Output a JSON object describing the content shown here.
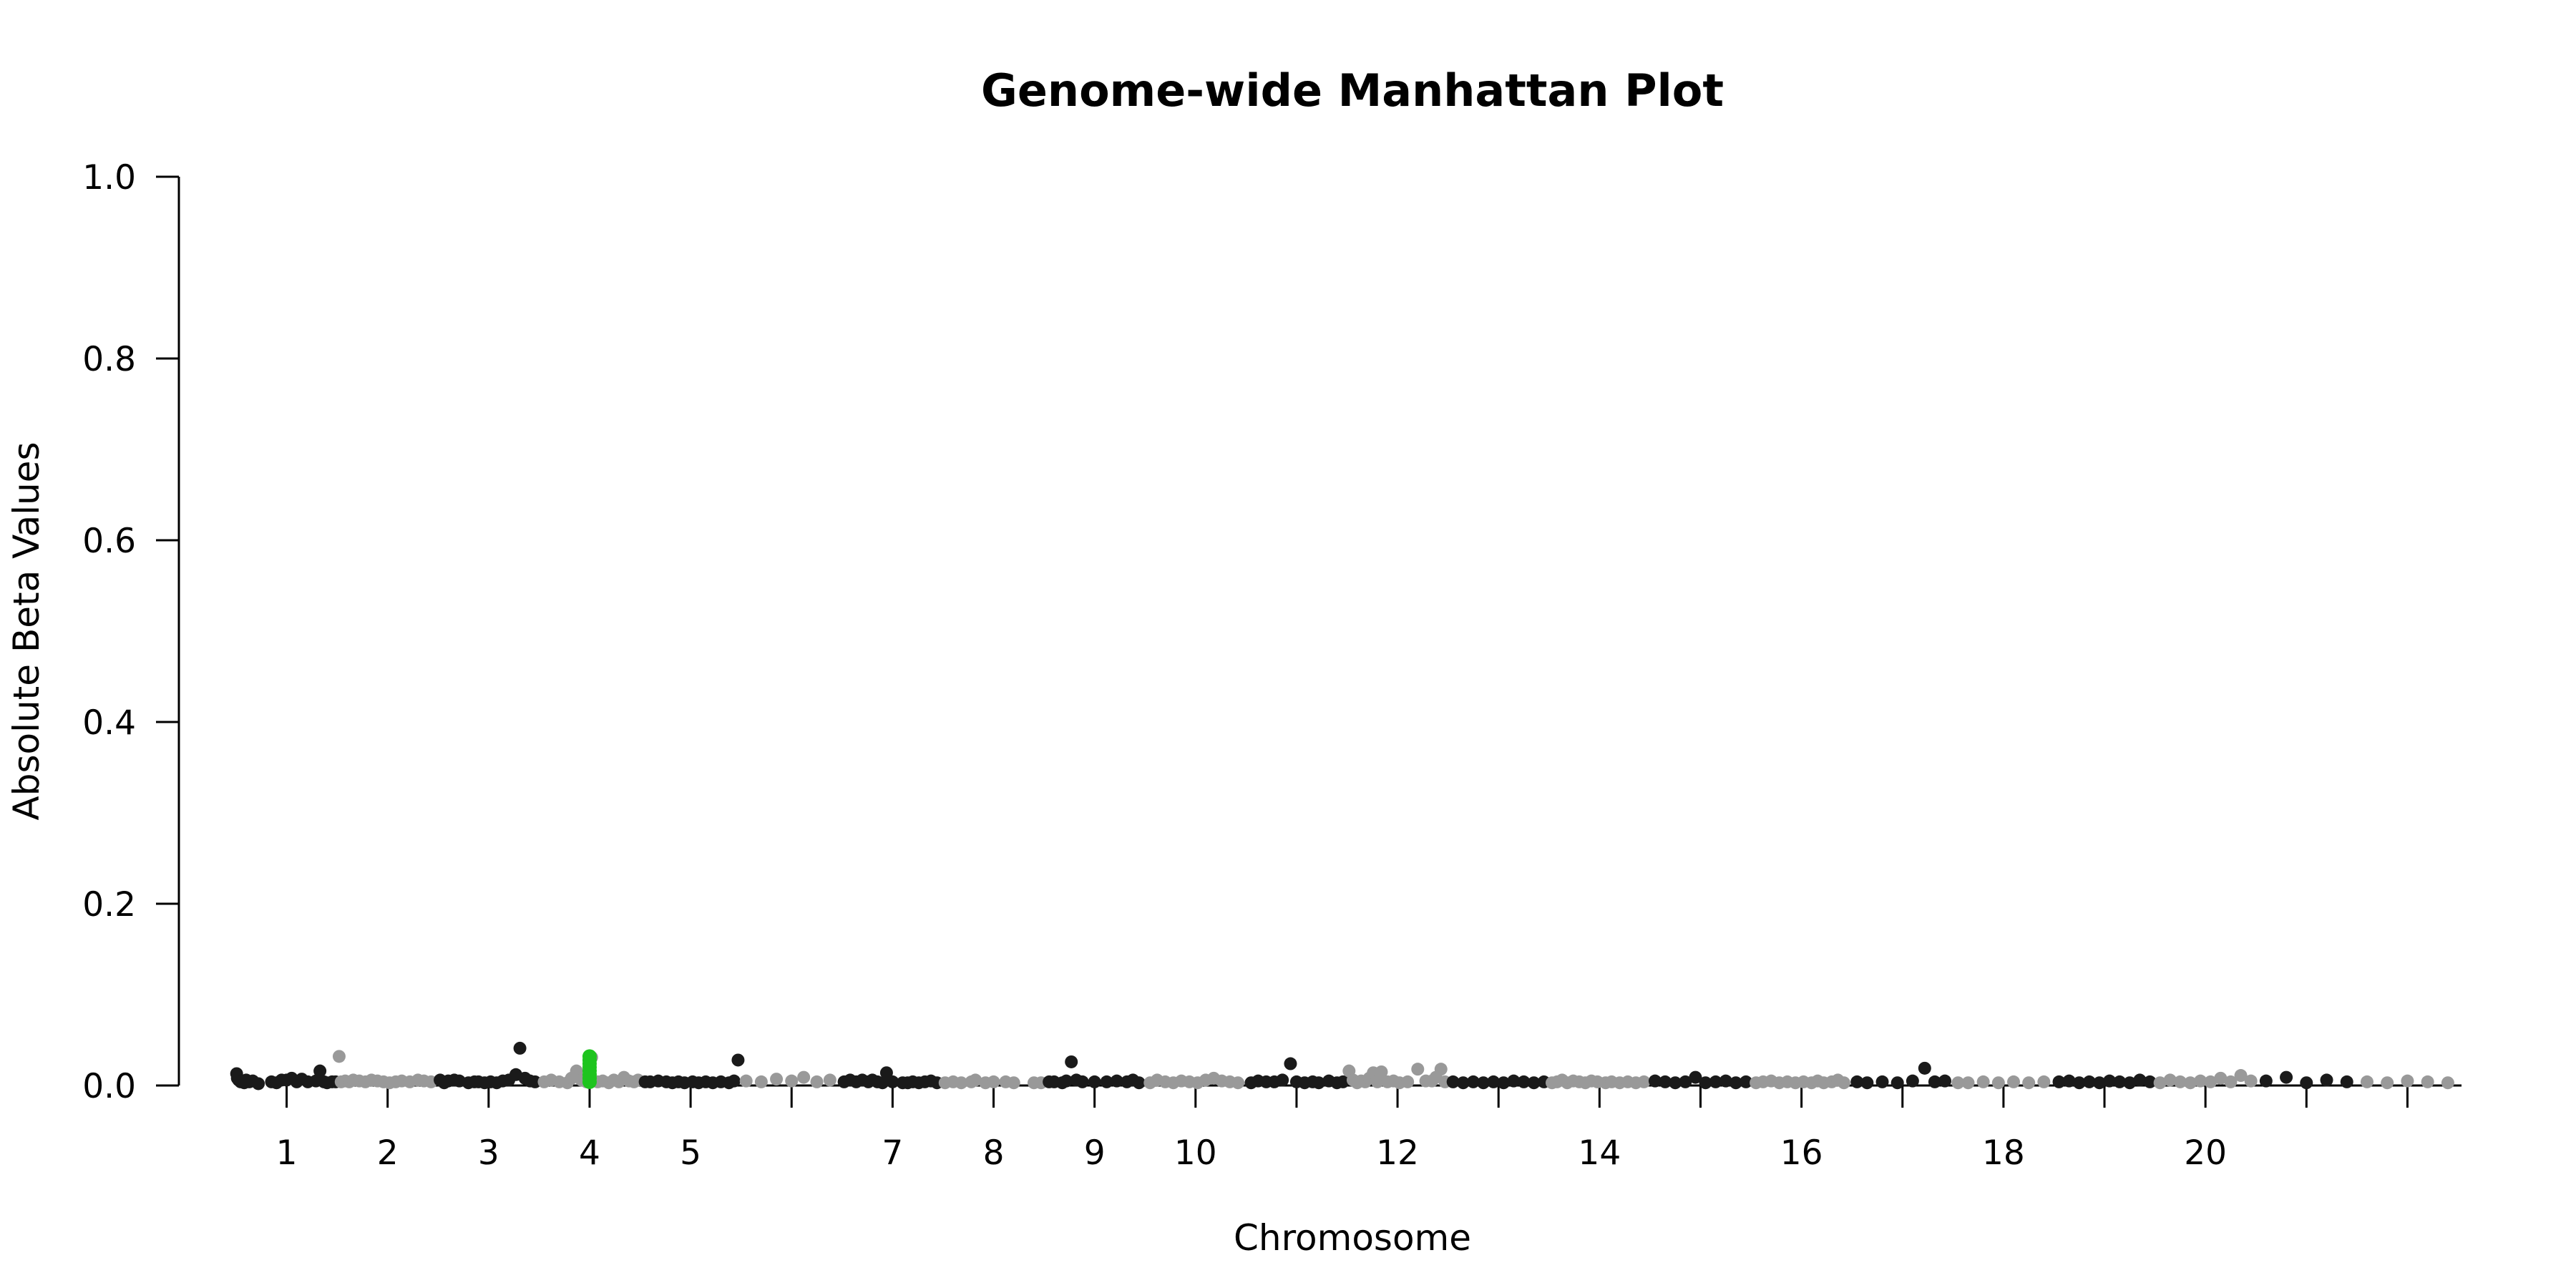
{
  "chart_data": {
    "type": "scatter",
    "title": "Genome-wide Manhattan Plot",
    "xlabel": "Chromosome",
    "ylabel": "Absolute Beta Values",
    "ylim": [
      0,
      1.0
    ],
    "yticks": [
      "0.0",
      "0.2",
      "0.4",
      "0.6",
      "0.8",
      "1.0"
    ],
    "grid": false,
    "colors": {
      "odd": "#1a1a1a",
      "even": "#999999",
      "highlight": "#1ec41e",
      "axis": "#000000"
    },
    "chromosomes": [
      {
        "chr": "1",
        "label": "1",
        "points": [
          [
            0.005,
            0.013
          ],
          [
            0.012,
            0.008
          ],
          [
            0.025,
            0.006
          ],
          [
            0.045,
            0.004
          ],
          [
            0.06,
            0.005
          ],
          [
            0.08,
            0.003
          ],
          [
            0.1,
            0.006
          ],
          [
            0.13,
            0.004
          ],
          [
            0.165,
            0.005
          ],
          [
            0.22,
            0.002
          ],
          [
            0.35,
            0.004
          ],
          [
            0.4,
            0.003
          ],
          [
            0.45,
            0.006
          ],
          [
            0.5,
            0.006
          ],
          [
            0.55,
            0.008
          ],
          [
            0.6,
            0.004
          ],
          [
            0.65,
            0.007
          ],
          [
            0.71,
            0.004
          ],
          [
            0.79,
            0.005
          ],
          [
            0.83,
            0.016
          ],
          [
            0.87,
            0.004
          ],
          [
            0.9,
            0.003
          ],
          [
            0.95,
            0.004
          ],
          [
            0.985,
            0.004
          ]
        ]
      },
      {
        "chr": "2",
        "label": "2",
        "points": [
          [
            0.02,
            0.032
          ],
          [
            0.04,
            0.004
          ],
          [
            0.08,
            0.005
          ],
          [
            0.12,
            0.004
          ],
          [
            0.16,
            0.006
          ],
          [
            0.22,
            0.005
          ],
          [
            0.28,
            0.004
          ],
          [
            0.34,
            0.006
          ],
          [
            0.4,
            0.005
          ],
          [
            0.46,
            0.004
          ],
          [
            0.52,
            0.003
          ],
          [
            0.58,
            0.004
          ],
          [
            0.64,
            0.005
          ],
          [
            0.72,
            0.004
          ],
          [
            0.8,
            0.006
          ],
          [
            0.86,
            0.005
          ],
          [
            0.93,
            0.004
          ]
        ]
      },
      {
        "chr": "3",
        "label": "3",
        "points": [
          [
            0.02,
            0.006
          ],
          [
            0.06,
            0.003
          ],
          [
            0.1,
            0.005
          ],
          [
            0.16,
            0.006
          ],
          [
            0.21,
            0.005
          ],
          [
            0.3,
            0.003
          ],
          [
            0.36,
            0.004
          ],
          [
            0.4,
            0.004
          ],
          [
            0.46,
            0.003
          ],
          [
            0.52,
            0.004
          ],
          [
            0.58,
            0.003
          ],
          [
            0.64,
            0.005
          ],
          [
            0.7,
            0.006
          ],
          [
            0.77,
            0.012
          ],
          [
            0.81,
            0.041
          ],
          [
            0.86,
            0.008
          ],
          [
            0.91,
            0.005
          ],
          [
            0.96,
            0.004
          ]
        ]
      },
      {
        "chr": "4",
        "label": "4",
        "points": [
          [
            0.05,
            0.004
          ],
          [
            0.12,
            0.006
          ],
          [
            0.2,
            0.004
          ],
          [
            0.28,
            0.003
          ],
          [
            0.32,
            0.008
          ],
          [
            0.37,
            0.016
          ],
          [
            0.42,
            0.006
          ],
          [
            0.47,
            0.004
          ],
          [
            0.52,
            0.031
          ],
          [
            0.58,
            0.004
          ],
          [
            0.63,
            0.005
          ],
          [
            0.69,
            0.003
          ],
          [
            0.74,
            0.006
          ],
          [
            0.79,
            0.004
          ],
          [
            0.84,
            0.009
          ],
          [
            0.89,
            0.005
          ],
          [
            0.94,
            0.004
          ],
          [
            0.98,
            0.006
          ]
        ]
      },
      {
        "chr": "5",
        "label": "5",
        "points": [
          [
            0.05,
            0.004
          ],
          [
            0.1,
            0.004
          ],
          [
            0.18,
            0.005
          ],
          [
            0.26,
            0.004
          ],
          [
            0.32,
            0.003
          ],
          [
            0.38,
            0.004
          ],
          [
            0.44,
            0.003
          ],
          [
            0.52,
            0.004
          ],
          [
            0.58,
            0.003
          ],
          [
            0.65,
            0.004
          ],
          [
            0.72,
            0.003
          ],
          [
            0.8,
            0.004
          ],
          [
            0.88,
            0.003
          ],
          [
            0.93,
            0.005
          ],
          [
            0.97,
            0.028
          ]
        ]
      },
      {
        "chr": "6",
        "label": "",
        "points": [
          [
            0.05,
            0.005
          ],
          [
            0.2,
            0.004
          ],
          [
            0.35,
            0.007
          ],
          [
            0.5,
            0.005
          ],
          [
            0.62,
            0.009
          ],
          [
            0.75,
            0.004
          ],
          [
            0.88,
            0.006
          ]
        ]
      },
      {
        "chr": "7",
        "label": "7",
        "points": [
          [
            0.02,
            0.004
          ],
          [
            0.08,
            0.006
          ],
          [
            0.14,
            0.004
          ],
          [
            0.2,
            0.006
          ],
          [
            0.26,
            0.004
          ],
          [
            0.3,
            0.006
          ],
          [
            0.35,
            0.004
          ],
          [
            0.4,
            0.003
          ],
          [
            0.44,
            0.014
          ],
          [
            0.5,
            0.004
          ],
          [
            0.6,
            0.003
          ],
          [
            0.65,
            0.003
          ],
          [
            0.7,
            0.004
          ],
          [
            0.76,
            0.003
          ],
          [
            0.82,
            0.004
          ],
          [
            0.88,
            0.005
          ],
          [
            0.94,
            0.003
          ]
        ]
      },
      {
        "chr": "8",
        "label": "8",
        "points": [
          [
            0.02,
            0.003
          ],
          [
            0.1,
            0.004
          ],
          [
            0.18,
            0.003
          ],
          [
            0.28,
            0.004
          ],
          [
            0.32,
            0.006
          ],
          [
            0.42,
            0.003
          ],
          [
            0.5,
            0.004
          ],
          [
            0.62,
            0.004
          ],
          [
            0.7,
            0.003
          ],
          [
            0.9,
            0.003
          ],
          [
            0.97,
            0.003
          ]
        ]
      },
      {
        "chr": "9",
        "label": "9",
        "points": [
          [
            0.05,
            0.004
          ],
          [
            0.1,
            0.004
          ],
          [
            0.18,
            0.003
          ],
          [
            0.22,
            0.005
          ],
          [
            0.27,
            0.026
          ],
          [
            0.32,
            0.006
          ],
          [
            0.38,
            0.004
          ],
          [
            0.5,
            0.004
          ],
          [
            0.62,
            0.004
          ],
          [
            0.72,
            0.005
          ],
          [
            0.82,
            0.004
          ],
          [
            0.88,
            0.006
          ],
          [
            0.94,
            0.003
          ]
        ]
      },
      {
        "chr": "10",
        "label": "10",
        "points": [
          [
            0.05,
            0.003
          ],
          [
            0.12,
            0.006
          ],
          [
            0.2,
            0.004
          ],
          [
            0.28,
            0.003
          ],
          [
            0.36,
            0.005
          ],
          [
            0.44,
            0.004
          ],
          [
            0.52,
            0.003
          ],
          [
            0.6,
            0.006
          ],
          [
            0.68,
            0.008
          ],
          [
            0.76,
            0.005
          ],
          [
            0.84,
            0.004
          ],
          [
            0.92,
            0.003
          ]
        ]
      },
      {
        "chr": "11",
        "label": "",
        "points": [
          [
            0.05,
            0.003
          ],
          [
            0.12,
            0.005
          ],
          [
            0.2,
            0.004
          ],
          [
            0.28,
            0.004
          ],
          [
            0.36,
            0.006
          ],
          [
            0.44,
            0.024
          ],
          [
            0.5,
            0.004
          ],
          [
            0.58,
            0.003
          ],
          [
            0.66,
            0.004
          ],
          [
            0.72,
            0.003
          ],
          [
            0.82,
            0.005
          ],
          [
            0.9,
            0.003
          ],
          [
            0.96,
            0.004
          ]
        ]
      },
      {
        "chr": "12",
        "label": "12",
        "points": [
          [
            0.02,
            0.016
          ],
          [
            0.06,
            0.006
          ],
          [
            0.1,
            0.003
          ],
          [
            0.14,
            0.005
          ],
          [
            0.18,
            0.004
          ],
          [
            0.22,
            0.008
          ],
          [
            0.26,
            0.014
          ],
          [
            0.3,
            0.004
          ],
          [
            0.34,
            0.015
          ],
          [
            0.4,
            0.004
          ],
          [
            0.46,
            0.005
          ],
          [
            0.52,
            0.003
          ],
          [
            0.6,
            0.004
          ],
          [
            0.7,
            0.018
          ],
          [
            0.78,
            0.005
          ],
          [
            0.84,
            0.005
          ],
          [
            0.88,
            0.009
          ],
          [
            0.93,
            0.018
          ],
          [
            0.97,
            0.004
          ]
        ]
      },
      {
        "chr": "13",
        "label": "",
        "points": [
          [
            0.05,
            0.004
          ],
          [
            0.15,
            0.003
          ],
          [
            0.25,
            0.004
          ],
          [
            0.35,
            0.003
          ],
          [
            0.45,
            0.004
          ],
          [
            0.55,
            0.003
          ],
          [
            0.65,
            0.005
          ],
          [
            0.75,
            0.004
          ],
          [
            0.85,
            0.003
          ],
          [
            0.95,
            0.004
          ]
        ]
      },
      {
        "chr": "14",
        "label": "14",
        "points": [
          [
            0.03,
            0.003
          ],
          [
            0.08,
            0.004
          ],
          [
            0.13,
            0.006
          ],
          [
            0.18,
            0.003
          ],
          [
            0.24,
            0.005
          ],
          [
            0.3,
            0.004
          ],
          [
            0.36,
            0.003
          ],
          [
            0.42,
            0.005
          ],
          [
            0.48,
            0.004
          ],
          [
            0.56,
            0.003
          ],
          [
            0.62,
            0.004
          ],
          [
            0.7,
            0.003
          ],
          [
            0.78,
            0.004
          ],
          [
            0.86,
            0.003
          ],
          [
            0.94,
            0.004
          ]
        ]
      },
      {
        "chr": "15",
        "label": "",
        "points": [
          [
            0.05,
            0.005
          ],
          [
            0.15,
            0.004
          ],
          [
            0.25,
            0.003
          ],
          [
            0.35,
            0.004
          ],
          [
            0.45,
            0.009
          ],
          [
            0.55,
            0.003
          ],
          [
            0.65,
            0.004
          ],
          [
            0.75,
            0.005
          ],
          [
            0.85,
            0.003
          ],
          [
            0.95,
            0.004
          ]
        ]
      },
      {
        "chr": "16",
        "label": "16",
        "points": [
          [
            0.05,
            0.003
          ],
          [
            0.12,
            0.004
          ],
          [
            0.2,
            0.005
          ],
          [
            0.28,
            0.003
          ],
          [
            0.36,
            0.004
          ],
          [
            0.44,
            0.003
          ],
          [
            0.52,
            0.004
          ],
          [
            0.6,
            0.003
          ],
          [
            0.66,
            0.005
          ],
          [
            0.72,
            0.003
          ],
          [
            0.8,
            0.004
          ],
          [
            0.86,
            0.006
          ],
          [
            0.92,
            0.003
          ]
        ]
      },
      {
        "chr": "17",
        "label": "",
        "points": [
          [
            0.05,
            0.004
          ],
          [
            0.15,
            0.003
          ],
          [
            0.3,
            0.004
          ],
          [
            0.45,
            0.003
          ],
          [
            0.6,
            0.005
          ],
          [
            0.72,
            0.019
          ],
          [
            0.82,
            0.004
          ],
          [
            0.92,
            0.005
          ]
        ]
      },
      {
        "chr": "18",
        "label": "18",
        "points": [
          [
            0.05,
            0.003
          ],
          [
            0.15,
            0.003
          ],
          [
            0.3,
            0.004
          ],
          [
            0.45,
            0.003
          ],
          [
            0.6,
            0.004
          ],
          [
            0.75,
            0.003
          ],
          [
            0.9,
            0.004
          ]
        ]
      },
      {
        "chr": "19",
        "label": "",
        "points": [
          [
            0.05,
            0.004
          ],
          [
            0.15,
            0.005
          ],
          [
            0.25,
            0.003
          ],
          [
            0.35,
            0.004
          ],
          [
            0.45,
            0.003
          ],
          [
            0.55,
            0.005
          ],
          [
            0.65,
            0.004
          ],
          [
            0.75,
            0.003
          ],
          [
            0.85,
            0.006
          ],
          [
            0.95,
            0.004
          ]
        ]
      },
      {
        "chr": "20",
        "label": "20",
        "points": [
          [
            0.05,
            0.003
          ],
          [
            0.15,
            0.006
          ],
          [
            0.25,
            0.004
          ],
          [
            0.35,
            0.003
          ],
          [
            0.45,
            0.005
          ],
          [
            0.55,
            0.004
          ],
          [
            0.65,
            0.008
          ],
          [
            0.75,
            0.004
          ],
          [
            0.85,
            0.011
          ],
          [
            0.95,
            0.005
          ]
        ]
      },
      {
        "chr": "21",
        "label": "",
        "points": [
          [
            0.1,
            0.005
          ],
          [
            0.3,
            0.009
          ],
          [
            0.5,
            0.003
          ],
          [
            0.7,
            0.006
          ],
          [
            0.9,
            0.004
          ]
        ]
      },
      {
        "chr": "22",
        "label": "",
        "points": [
          [
            0.1,
            0.004
          ],
          [
            0.3,
            0.003
          ],
          [
            0.5,
            0.005
          ],
          [
            0.7,
            0.004
          ],
          [
            0.9,
            0.003
          ]
        ]
      }
    ],
    "highlight": {
      "chr": "4",
      "pos": 0.0,
      "points": [
        0.004,
        0.008,
        0.012,
        0.016,
        0.02,
        0.024,
        0.028,
        0.032
      ]
    }
  }
}
